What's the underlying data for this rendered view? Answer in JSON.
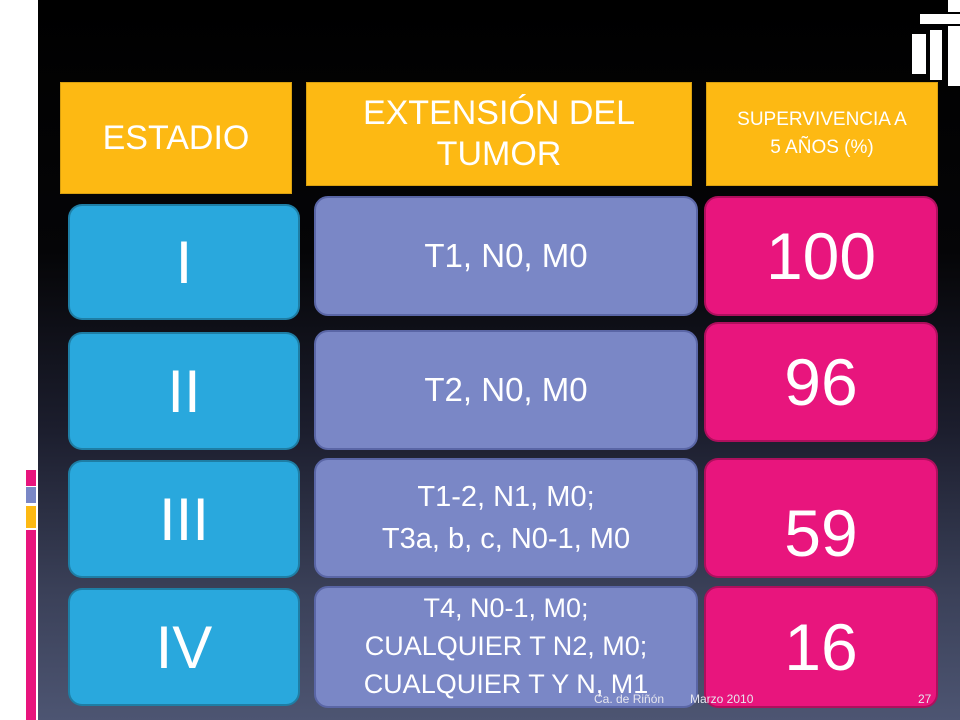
{
  "headers": {
    "stage": "ESTADIO",
    "extent_line1": "EXTENSIÓN DEL",
    "extent_line2": "TUMOR",
    "survival_line1": "SUPERVIVENCIA A",
    "survival_line2": "5 AÑOS (%)"
  },
  "rows": [
    {
      "stage": "I",
      "extent": [
        "T1, N0, M0"
      ],
      "survival": "100"
    },
    {
      "stage": "II",
      "extent": [
        "T2, N0, M0"
      ],
      "survival": "96"
    },
    {
      "stage": "III",
      "extent": [
        "T1-2, N1, M0;",
        "T3a, b, c, N0-1, M0"
      ],
      "survival": "59"
    },
    {
      "stage": "IV",
      "extent": [
        "T4, N0-1, M0;",
        "CUALQUIER T N2, M0;",
        "CUALQUIER T Y N, M1"
      ],
      "survival": "16"
    }
  ],
  "footer": {
    "source": "Ca. de Riñón",
    "date": "Marzo 2010",
    "page_number": "27"
  },
  "colors": {
    "header": "#fdb913",
    "stage": "#29a8dd",
    "extent": "#7a87c6",
    "survival": "#e8157d"
  }
}
